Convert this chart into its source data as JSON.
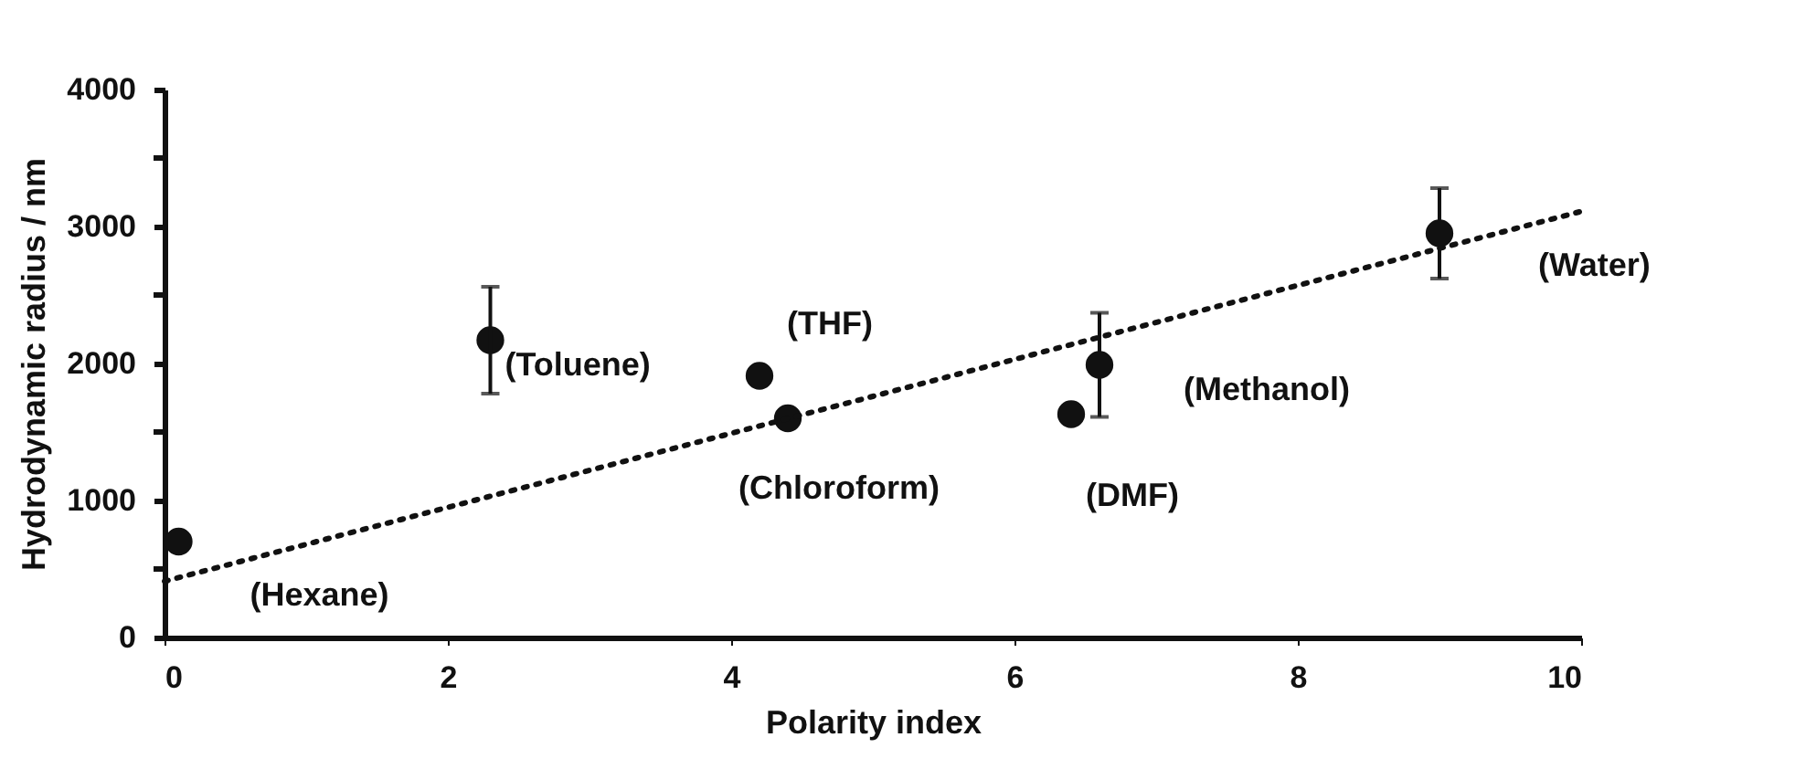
{
  "chart_data": {
    "type": "scatter",
    "xlabel": "Polarity index",
    "ylabel": "Hydrodynamic radius / nm",
    "xlim": [
      0,
      10
    ],
    "xticks": [
      0,
      2,
      4,
      6,
      8,
      10
    ],
    "ylim": [
      0,
      4000
    ],
    "yticks": [
      0,
      {
        "value": 500,
        "label": null
      },
      1000,
      {
        "value": 1500,
        "label": null
      },
      2000,
      {
        "value": 2500,
        "label": null
      },
      3000,
      {
        "value": 3500,
        "label": null
      },
      4000
    ],
    "grid": false,
    "marker": "circle",
    "series": [
      {
        "color": "#111111",
        "x": [
          0.1,
          2.3,
          4.2,
          4.4,
          6.4,
          6.6,
          9.0
        ],
        "values": [
          700,
          2170,
          1910,
          1600,
          1630,
          1990,
          2950
        ],
        "errors": [
          null,
          390,
          null,
          null,
          null,
          380,
          330
        ]
      },
      {
        "type": "line",
        "color": "#111111",
        "line_style": "dotted",
        "marker": "none",
        "x": [
          0,
          10
        ],
        "values": [
          410,
          3110
        ]
      }
    ],
    "annotations": [
      {
        "text": "(Hexane)",
        "x": 0.1,
        "y": 700
      },
      {
        "text": "(Toluene)",
        "x": 2.3,
        "y": 2170
      },
      {
        "text": "(THF)",
        "x": 4.2,
        "y": 1910
      },
      {
        "text": "(Chloroform)",
        "x": 4.4,
        "y": 1600
      },
      {
        "text": "(DMF)",
        "x": 6.4,
        "y": 1630
      },
      {
        "text": "(Methanol)",
        "x": 6.6,
        "y": 1990
      },
      {
        "text": "(Water)",
        "x": 9.0,
        "y": 2950
      }
    ]
  }
}
